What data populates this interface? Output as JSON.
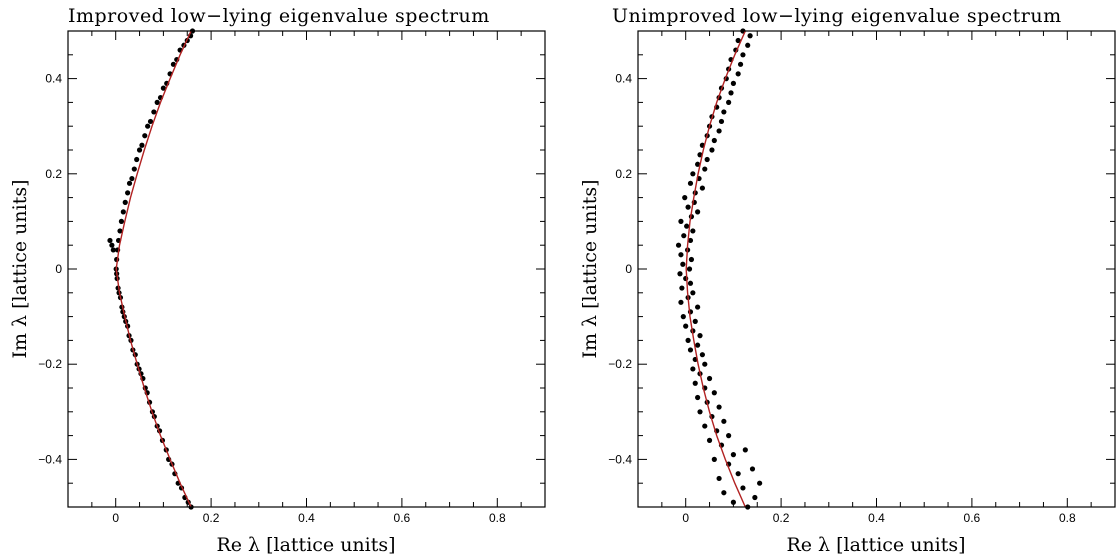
{
  "chart_data": [
    {
      "type": "scatter",
      "title": "Improved low−lying eigenvalue spectrum",
      "xlabel": "Re λ [lattice units]",
      "ylabel": "Im λ [lattice units]",
      "xlim": [
        -0.1,
        0.9
      ],
      "ylim": [
        -0.5,
        0.5
      ],
      "xticks": [
        0,
        0.2,
        0.4,
        0.6,
        0.8
      ],
      "xtick_labels": [
        "0",
        "0.2",
        "0.4",
        "0.6",
        "0.8"
      ],
      "yticks": [
        -0.4,
        -0.2,
        0,
        0.2,
        0.4
      ],
      "ytick_labels": [
        "−0.4",
        "−0.2",
        "0",
        "0.2",
        "0.4"
      ],
      "grid": false,
      "point_color": "#000000",
      "curve_color": "#b22222",
      "fit_curve": {
        "name": "",
        "points": [
          [
            0.158,
            -0.5
          ],
          [
            0.135,
            -0.45
          ],
          [
            0.114,
            -0.4
          ],
          [
            0.094,
            -0.35
          ],
          [
            0.076,
            -0.3
          ],
          [
            0.06,
            -0.25
          ],
          [
            0.045,
            -0.2
          ],
          [
            0.031,
            -0.15
          ],
          [
            0.019,
            -0.1
          ],
          [
            0.008,
            -0.05
          ],
          [
            0.001,
            0.0
          ],
          [
            0.008,
            0.05
          ],
          [
            0.019,
            0.1
          ],
          [
            0.031,
            0.15
          ],
          [
            0.045,
            0.2
          ],
          [
            0.06,
            0.25
          ],
          [
            0.076,
            0.3
          ],
          [
            0.094,
            0.35
          ],
          [
            0.114,
            0.4
          ],
          [
            0.135,
            0.45
          ],
          [
            0.158,
            0.5
          ]
        ]
      },
      "scatter": {
        "name": "",
        "points": [
          [
            0.158,
            -0.5
          ],
          [
            0.152,
            -0.49
          ],
          [
            0.145,
            -0.48
          ],
          [
            0.138,
            -0.46
          ],
          [
            0.131,
            -0.45
          ],
          [
            0.124,
            -0.43
          ],
          [
            0.118,
            -0.41
          ],
          [
            0.111,
            -0.4
          ],
          [
            0.106,
            -0.38
          ],
          [
            0.098,
            -0.36
          ],
          [
            0.092,
            -0.34
          ],
          [
            0.087,
            -0.33
          ],
          [
            0.081,
            -0.31
          ],
          [
            0.077,
            -0.3
          ],
          [
            0.071,
            -0.28
          ],
          [
            0.066,
            -0.26
          ],
          [
            0.062,
            -0.25
          ],
          [
            0.057,
            -0.23
          ],
          [
            0.053,
            -0.22
          ],
          [
            0.049,
            -0.21
          ],
          [
            0.045,
            -0.2
          ],
          [
            0.041,
            -0.18
          ],
          [
            0.036,
            -0.17
          ],
          [
            0.032,
            -0.15
          ],
          [
            0.028,
            -0.14
          ],
          [
            0.025,
            -0.12
          ],
          [
            0.021,
            -0.11
          ],
          [
            0.018,
            -0.1
          ],
          [
            0.015,
            -0.09
          ],
          [
            0.013,
            -0.08
          ],
          [
            0.01,
            -0.06
          ],
          [
            0.007,
            -0.05
          ],
          [
            0.005,
            -0.04
          ],
          [
            0.003,
            -0.02
          ],
          [
            0.002,
            -0.01
          ],
          [
            0.001,
            0.0
          ],
          [
            -0.005,
            0.04
          ],
          [
            -0.008,
            0.05
          ],
          [
            -0.012,
            0.06
          ],
          [
            0.002,
            0.02
          ],
          [
            0.004,
            0.04
          ],
          [
            0.006,
            0.06
          ],
          [
            0.009,
            0.08
          ],
          [
            0.012,
            0.1
          ],
          [
            0.016,
            0.12
          ],
          [
            0.02,
            0.14
          ],
          [
            0.025,
            0.16
          ],
          [
            0.029,
            0.18
          ],
          [
            0.034,
            0.19
          ],
          [
            0.039,
            0.21
          ],
          [
            0.044,
            0.23
          ],
          [
            0.05,
            0.25
          ],
          [
            0.055,
            0.26
          ],
          [
            0.061,
            0.28
          ],
          [
            0.067,
            0.3
          ],
          [
            0.073,
            0.31
          ],
          [
            0.08,
            0.33
          ],
          [
            0.087,
            0.35
          ],
          [
            0.094,
            0.36
          ],
          [
            0.1,
            0.38
          ],
          [
            0.107,
            0.39
          ],
          [
            0.114,
            0.41
          ],
          [
            0.121,
            0.43
          ],
          [
            0.128,
            0.44
          ],
          [
            0.135,
            0.46
          ],
          [
            0.143,
            0.47
          ],
          [
            0.15,
            0.48
          ],
          [
            0.157,
            0.49
          ],
          [
            0.161,
            0.5
          ]
        ]
      }
    },
    {
      "type": "scatter",
      "title": "Unimproved low−lying eigenvalue spectrum",
      "xlabel": "Re λ [lattice units]",
      "ylabel": "Im λ [lattice units]",
      "xlim": [
        -0.1,
        0.9
      ],
      "ylim": [
        -0.5,
        0.5
      ],
      "xticks": [
        0,
        0.2,
        0.4,
        0.6,
        0.8
      ],
      "xtick_labels": [
        "0",
        "0.2",
        "0.4",
        "0.6",
        "0.8"
      ],
      "yticks": [
        -0.4,
        -0.2,
        0,
        0.2,
        0.4
      ],
      "ytick_labels": [
        "−0.4",
        "−0.2",
        "0",
        "0.2",
        "0.4"
      ],
      "grid": false,
      "point_color": "#000000",
      "curve_color": "#b22222",
      "fit_curve": {
        "name": "",
        "points": [
          [
            0.125,
            -0.5
          ],
          [
            0.103,
            -0.45
          ],
          [
            0.083,
            -0.4
          ],
          [
            0.065,
            -0.35
          ],
          [
            0.05,
            -0.3
          ],
          [
            0.037,
            -0.25
          ],
          [
            0.026,
            -0.2
          ],
          [
            0.017,
            -0.15
          ],
          [
            0.009,
            -0.1
          ],
          [
            0.004,
            -0.05
          ],
          [
            0.001,
            0.0
          ],
          [
            0.004,
            0.05
          ],
          [
            0.009,
            0.1
          ],
          [
            0.017,
            0.15
          ],
          [
            0.026,
            0.2
          ],
          [
            0.037,
            0.25
          ],
          [
            0.05,
            0.3
          ],
          [
            0.065,
            0.35
          ],
          [
            0.083,
            0.4
          ],
          [
            0.103,
            0.45
          ],
          [
            0.125,
            0.5
          ]
        ]
      },
      "scatter": {
        "name": "",
        "points": [
          [
            0.13,
            -0.5
          ],
          [
            0.1,
            -0.49
          ],
          [
            0.145,
            -0.48
          ],
          [
            0.08,
            -0.47
          ],
          [
            0.12,
            -0.46
          ],
          [
            0.155,
            -0.45
          ],
          [
            0.07,
            -0.44
          ],
          [
            0.11,
            -0.43
          ],
          [
            0.14,
            -0.42
          ],
          [
            0.09,
            -0.41
          ],
          [
            0.06,
            -0.4
          ],
          [
            0.1,
            -0.39
          ],
          [
            0.125,
            -0.38
          ],
          [
            0.075,
            -0.37
          ],
          [
            0.05,
            -0.36
          ],
          [
            0.09,
            -0.35
          ],
          [
            0.065,
            -0.34
          ],
          [
            0.04,
            -0.33
          ],
          [
            0.08,
            -0.32
          ],
          [
            0.055,
            -0.31
          ],
          [
            0.03,
            -0.3
          ],
          [
            0.07,
            -0.29
          ],
          [
            0.045,
            -0.28
          ],
          [
            0.025,
            -0.27
          ],
          [
            0.06,
            -0.26
          ],
          [
            0.04,
            -0.25
          ],
          [
            0.02,
            -0.24
          ],
          [
            0.05,
            -0.23
          ],
          [
            0.03,
            -0.22
          ],
          [
            0.015,
            -0.21
          ],
          [
            0.04,
            -0.2
          ],
          [
            0.02,
            -0.19
          ],
          [
            0.035,
            -0.18
          ],
          [
            0.01,
            -0.17
          ],
          [
            0.025,
            -0.16
          ],
          [
            0.005,
            -0.15
          ],
          [
            0.03,
            -0.14
          ],
          [
            0.015,
            -0.13
          ],
          [
            0.0,
            -0.12
          ],
          [
            0.02,
            -0.11
          ],
          [
            -0.005,
            -0.1
          ],
          [
            0.01,
            -0.09
          ],
          [
            0.025,
            -0.08
          ],
          [
            -0.01,
            -0.07
          ],
          [
            0.005,
            -0.06
          ],
          [
            0.015,
            -0.05
          ],
          [
            -0.008,
            -0.04
          ],
          [
            0.01,
            -0.03
          ],
          [
            0.0,
            -0.02
          ],
          [
            -0.012,
            -0.01
          ],
          [
            0.008,
            0.0
          ],
          [
            -0.006,
            0.01
          ],
          [
            0.012,
            0.02
          ],
          [
            -0.01,
            0.03
          ],
          [
            0.004,
            0.04
          ],
          [
            -0.015,
            0.05
          ],
          [
            0.01,
            0.06
          ],
          [
            -0.004,
            0.07
          ],
          [
            0.015,
            0.08
          ],
          [
            0.002,
            0.09
          ],
          [
            -0.01,
            0.1
          ],
          [
            0.012,
            0.11
          ],
          [
            0.025,
            0.12
          ],
          [
            0.005,
            0.13
          ],
          [
            0.018,
            0.14
          ],
          [
            -0.002,
            0.15
          ],
          [
            0.02,
            0.16
          ],
          [
            0.035,
            0.17
          ],
          [
            0.01,
            0.18
          ],
          [
            0.028,
            0.19
          ],
          [
            0.015,
            0.2
          ],
          [
            0.04,
            0.21
          ],
          [
            0.025,
            0.22
          ],
          [
            0.045,
            0.23
          ],
          [
            0.03,
            0.24
          ],
          [
            0.055,
            0.25
          ],
          [
            0.035,
            0.26
          ],
          [
            0.06,
            0.27
          ],
          [
            0.045,
            0.28
          ],
          [
            0.07,
            0.29
          ],
          [
            0.05,
            0.3
          ],
          [
            0.075,
            0.31
          ],
          [
            0.055,
            0.32
          ],
          [
            0.08,
            0.33
          ],
          [
            0.065,
            0.34
          ],
          [
            0.09,
            0.35
          ],
          [
            0.07,
            0.36
          ],
          [
            0.095,
            0.37
          ],
          [
            0.075,
            0.38
          ],
          [
            0.1,
            0.39
          ],
          [
            0.085,
            0.4
          ],
          [
            0.11,
            0.41
          ],
          [
            0.09,
            0.42
          ],
          [
            0.115,
            0.43
          ],
          [
            0.095,
            0.44
          ],
          [
            0.12,
            0.45
          ],
          [
            0.105,
            0.46
          ],
          [
            0.13,
            0.47
          ],
          [
            0.11,
            0.48
          ],
          [
            0.135,
            0.49
          ],
          [
            0.12,
            0.5
          ]
        ]
      }
    }
  ]
}
